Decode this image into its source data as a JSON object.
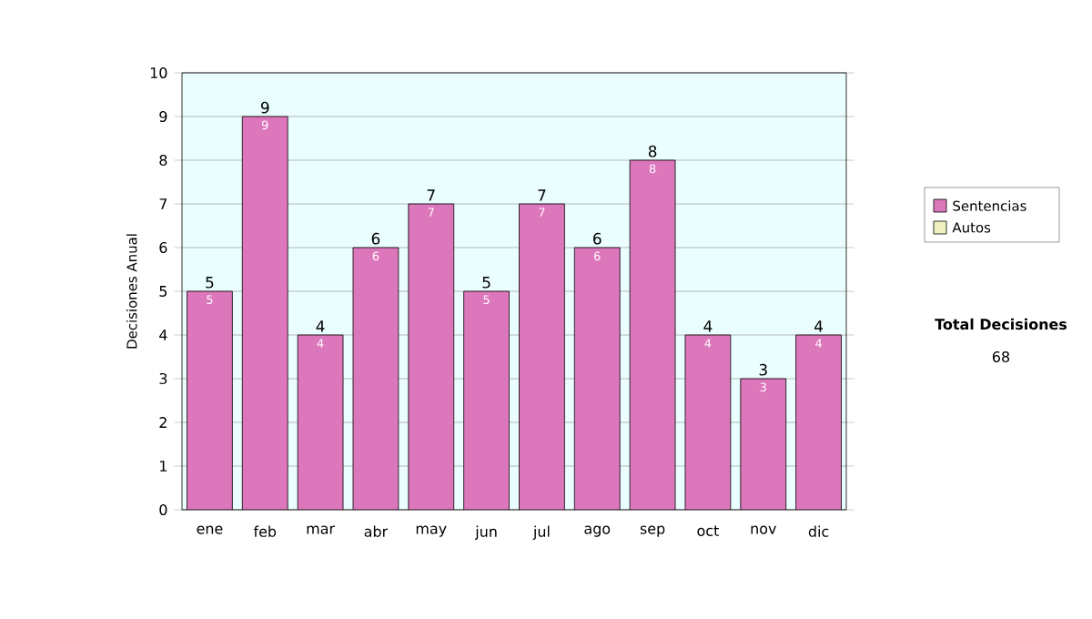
{
  "chart_data": {
    "type": "bar",
    "ylabel": "Decisiones Anual",
    "categories": [
      "ene",
      "feb",
      "mar",
      "abr",
      "may",
      "jun",
      "jul",
      "ago",
      "sep",
      "oct",
      "nov",
      "dic"
    ],
    "series": [
      {
        "name": "Sentencias",
        "color": "#dd77bb",
        "values": [
          5,
          9,
          4,
          6,
          7,
          5,
          7,
          6,
          8,
          4,
          3,
          4
        ]
      },
      {
        "name": "Autos",
        "color": "#eef0c0",
        "values": [
          null,
          null,
          null,
          null,
          null,
          null,
          null,
          null,
          null,
          null,
          null,
          null
        ]
      }
    ],
    "ylim": [
      0,
      10
    ],
    "yticks": [
      0,
      1,
      2,
      3,
      4,
      5,
      6,
      7,
      8,
      9,
      10
    ],
    "grid": "y",
    "legend": "right",
    "data_labels": true,
    "stacked": true,
    "totals": [
      "5",
      "9",
      "4",
      "6",
      "7",
      "5",
      "7",
      "6",
      "8",
      "4",
      "3",
      "4"
    ],
    "annotations": [
      "Total Decisiones",
      "68"
    ]
  }
}
